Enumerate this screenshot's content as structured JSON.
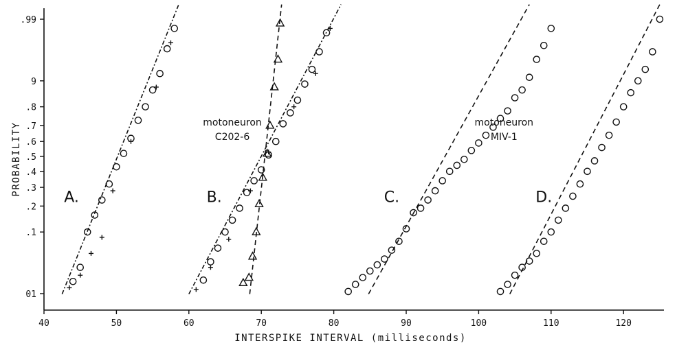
{
  "chart_data": {
    "type": "scatter",
    "title": "",
    "xlabel": "INTERSPIKE  INTERVAL  (milliseconds)",
    "ylabel": "PROBABILITY",
    "xlim": [
      40,
      125
    ],
    "x_scale": "linear",
    "y_scale": "normal-probability",
    "x_ticks": [
      40,
      50,
      60,
      70,
      80,
      90,
      100,
      110,
      120
    ],
    "y_ticks": [
      {
        "p": 0.01,
        "label": "01"
      },
      {
        "p": 0.1,
        "label": ".1"
      },
      {
        "p": 0.2,
        "label": ".2"
      },
      {
        "p": 0.3,
        "label": ".3"
      },
      {
        "p": 0.4,
        "label": ".4"
      },
      {
        "p": 0.5,
        "label": ".5"
      },
      {
        "p": 0.6,
        "label": ".6"
      },
      {
        "p": 0.7,
        "label": ".7"
      },
      {
        "p": 0.8,
        "label": ".8"
      },
      {
        "p": 0.9,
        "label": "9"
      },
      {
        "p": 0.99,
        "label": ".99"
      }
    ],
    "grid": false,
    "legend": "none",
    "annotations": [
      {
        "text": "motoneuron",
        "x": 66,
        "p": 0.7
      },
      {
        "text": "C202-6",
        "x": 66,
        "p": 0.61
      },
      {
        "text": "motoneuron",
        "x": 103.5,
        "p": 0.7
      },
      {
        "text": "MIV-1",
        "x": 103.5,
        "p": 0.61
      }
    ],
    "panel_labels": [
      {
        "text": "A.",
        "x": 43.8,
        "p": 0.22
      },
      {
        "text": "B.",
        "x": 63.5,
        "p": 0.22
      },
      {
        "text": "C.",
        "x": 88,
        "p": 0.22
      },
      {
        "text": "D.",
        "x": 109,
        "p": 0.22
      }
    ],
    "fit_lines": [
      {
        "panel": "A",
        "points": [
          [
            42.5,
            0.0098
          ],
          [
            58.6,
            0.995
          ]
        ]
      },
      {
        "panel": "B-circle",
        "points": [
          [
            60,
            0.0098
          ],
          [
            81,
            0.995
          ]
        ]
      },
      {
        "panel": "B-triangle",
        "points": [
          [
            68.4,
            0.0098
          ],
          [
            72.8,
            0.995
          ]
        ]
      },
      {
        "panel": "C",
        "points": [
          [
            84.8,
            0.0098
          ],
          [
            107,
            0.995
          ]
        ]
      },
      {
        "panel": "D",
        "points": [
          [
            104.3,
            0.0098
          ],
          [
            125,
            0.995
          ]
        ]
      }
    ],
    "series": [
      {
        "marker": "circle",
        "points": [
          [
            44,
            0.017
          ],
          [
            45,
            0.03
          ],
          [
            46,
            0.1
          ],
          [
            47,
            0.16
          ],
          [
            48,
            0.23
          ],
          [
            49,
            0.32
          ],
          [
            50,
            0.43
          ],
          [
            51,
            0.52
          ],
          [
            52,
            0.62
          ],
          [
            53,
            0.73
          ],
          [
            54,
            0.8
          ],
          [
            55,
            0.87
          ],
          [
            56,
            0.92
          ],
          [
            57,
            0.966
          ],
          [
            58,
            0.985
          ],
          [
            62,
            0.018
          ],
          [
            63,
            0.037
          ],
          [
            64,
            0.06
          ],
          [
            65,
            0.1
          ],
          [
            66,
            0.14
          ],
          [
            67,
            0.19
          ],
          [
            68,
            0.27
          ],
          [
            69,
            0.34
          ],
          [
            70,
            0.41
          ],
          [
            71,
            0.51
          ],
          [
            72,
            0.6
          ],
          [
            73,
            0.71
          ],
          [
            74,
            0.77
          ],
          [
            75,
            0.83
          ],
          [
            76,
            0.89
          ],
          [
            77,
            0.93
          ],
          [
            78,
            0.962
          ],
          [
            79,
            0.982
          ],
          [
            82,
            0.011
          ],
          [
            83,
            0.015
          ],
          [
            84,
            0.02
          ],
          [
            85,
            0.026
          ],
          [
            86,
            0.033
          ],
          [
            87,
            0.041
          ],
          [
            88,
            0.056
          ],
          [
            89,
            0.075
          ],
          [
            90,
            0.11
          ],
          [
            91,
            0.17
          ],
          [
            92,
            0.19
          ],
          [
            93,
            0.23
          ],
          [
            94,
            0.28
          ],
          [
            95,
            0.34
          ],
          [
            96,
            0.4
          ],
          [
            97,
            0.44
          ],
          [
            98,
            0.48
          ],
          [
            99,
            0.54
          ],
          [
            100,
            0.59
          ],
          [
            101,
            0.64
          ],
          [
            102,
            0.69
          ],
          [
            103,
            0.74
          ],
          [
            104,
            0.78
          ],
          [
            105,
            0.84
          ],
          [
            106,
            0.87
          ],
          [
            107,
            0.91
          ],
          [
            108,
            0.95
          ],
          [
            109,
            0.97
          ],
          [
            110,
            0.985
          ],
          [
            103,
            0.011
          ],
          [
            104,
            0.015
          ],
          [
            105,
            0.022
          ],
          [
            106,
            0.03
          ],
          [
            107,
            0.038
          ],
          [
            108,
            0.05
          ],
          [
            109,
            0.075
          ],
          [
            110,
            0.1
          ],
          [
            111,
            0.14
          ],
          [
            112,
            0.19
          ],
          [
            113,
            0.25
          ],
          [
            114,
            0.32
          ],
          [
            115,
            0.4
          ],
          [
            116,
            0.47
          ],
          [
            117,
            0.56
          ],
          [
            118,
            0.64
          ],
          [
            119,
            0.72
          ],
          [
            120,
            0.8
          ],
          [
            121,
            0.86
          ],
          [
            122,
            0.9
          ],
          [
            123,
            0.93
          ],
          [
            124,
            0.962
          ],
          [
            125,
            0.99
          ]
        ]
      },
      {
        "marker": "plus",
        "points": [
          [
            43.5,
            0.013
          ],
          [
            45,
            0.022
          ],
          [
            46.5,
            0.05
          ],
          [
            48,
            0.085
          ],
          [
            49.5,
            0.28
          ],
          [
            52,
            0.6
          ],
          [
            55.5,
            0.88
          ],
          [
            57.5,
            0.973
          ],
          [
            61,
            0.012
          ],
          [
            63,
            0.03
          ],
          [
            65.5,
            0.08
          ],
          [
            68.5,
            0.28
          ],
          [
            71,
            0.53
          ],
          [
            74.5,
            0.8
          ],
          [
            77.5,
            0.92
          ],
          [
            79.5,
            0.985
          ]
        ]
      },
      {
        "marker": "triangle",
        "points": [
          [
            67.5,
            0.016
          ],
          [
            68.3,
            0.02
          ],
          [
            68.8,
            0.045
          ],
          [
            69.3,
            0.1
          ],
          [
            69.7,
            0.21
          ],
          [
            70.2,
            0.36
          ],
          [
            70.8,
            0.52
          ],
          [
            71.2,
            0.7
          ],
          [
            71.8,
            0.88
          ],
          [
            72.3,
            0.95
          ],
          [
            72.6,
            0.988
          ]
        ]
      }
    ]
  }
}
